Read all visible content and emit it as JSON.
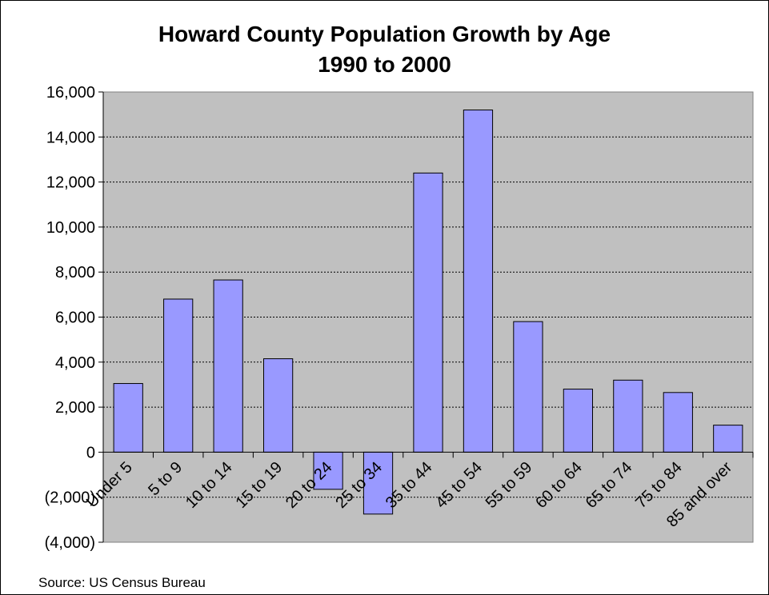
{
  "chart_data": {
    "type": "bar",
    "title": "Howard County Population Growth by Age",
    "subtitle": "1990 to 2000",
    "source": "Source:  US Census Bureau",
    "categories": [
      "Under 5",
      "5 to 9",
      "10 to 14",
      "15 to 19",
      "20 to 24",
      "25 to 34",
      "35 to 44",
      "45 to 54",
      "55 to 59",
      "60 to 64",
      "65 to 74",
      "75 to 84",
      "85 and over"
    ],
    "values": [
      3050,
      6800,
      7650,
      4150,
      -1650,
      -2750,
      12400,
      15200,
      5800,
      2800,
      3200,
      2650,
      1200
    ],
    "ylim": [
      -4000,
      16000
    ],
    "yticks": [
      -4000,
      -2000,
      0,
      2000,
      4000,
      6000,
      8000,
      10000,
      12000,
      14000,
      16000
    ],
    "ytick_labels": [
      "(4,000)",
      "(2,000)",
      "0",
      "2,000",
      "4,000",
      "6,000",
      "8,000",
      "10,000",
      "12,000",
      "14,000",
      "16,000"
    ],
    "grid": true,
    "colors": {
      "bar": "#9999ff",
      "plot_background": "#c0c0c0",
      "grid": "#000000"
    }
  }
}
